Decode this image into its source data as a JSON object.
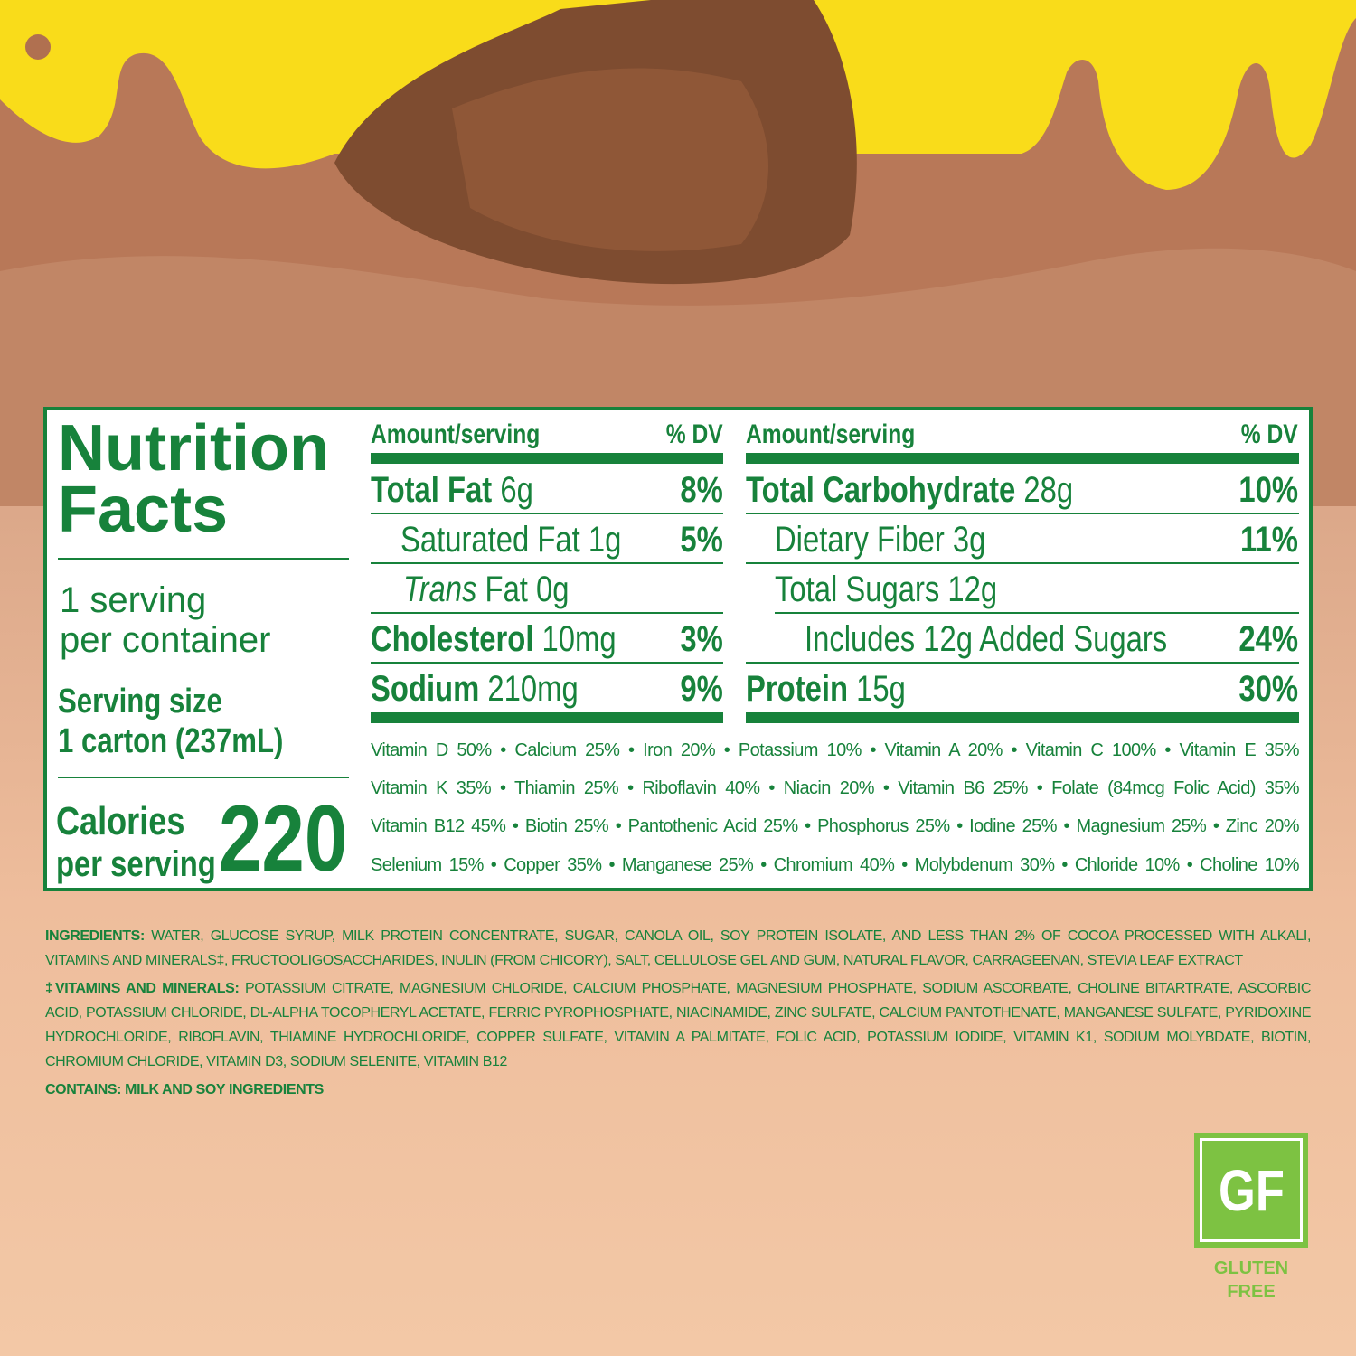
{
  "colors": {
    "green": "#17823b",
    "yellow": "#f9dc1a",
    "chocolate": "#b97a5a",
    "badge_green": "#7dc242"
  },
  "facts": {
    "title_line1": "Nutrition",
    "title_line2": "Facts",
    "servings_line1": "1 serving",
    "servings_line2": "per container",
    "serving_size_label": "Serving size",
    "serving_size_value": "1 carton (237mL)",
    "calories_label_line1": "Calories",
    "calories_label_line2": "per serving",
    "calories": "220"
  },
  "left_table": {
    "header_amount": "Amount/serving",
    "header_dv": "% DV",
    "rows": [
      {
        "name": "Total Fat",
        "amount": "6g",
        "dv": "8%"
      },
      {
        "name": "Saturated Fat",
        "amount": "1g",
        "dv": "5%"
      },
      {
        "name": "Trans",
        "name2": "Fat 0g",
        "amount": "",
        "dv": ""
      },
      {
        "name": "Cholesterol",
        "amount": "10mg",
        "dv": "3%"
      },
      {
        "name": "Sodium",
        "amount": "210mg",
        "dv": "9%"
      }
    ]
  },
  "right_table": {
    "header_amount": "Amount/serving",
    "header_dv": "% DV",
    "rows": [
      {
        "name": "Total Carbohydrate",
        "amount": "28g",
        "dv": "10%"
      },
      {
        "name": "Dietary Fiber 3g",
        "amount": "",
        "dv": "11%"
      },
      {
        "name": "Total Sugars 12g",
        "amount": "",
        "dv": ""
      },
      {
        "name": "Includes 12g Added Sugars",
        "amount": "",
        "dv": "24%"
      },
      {
        "name": "Protein",
        "amount": "15g",
        "dv": "30%"
      }
    ]
  },
  "vitamins": [
    "Vitamin D 50% • Calcium 25% • Iron 20% • Potassium 10% • Vitamin A 20% • Vitamin C 100% • Vitamin E 35%",
    "Vitamin K 35% • Thiamin 25% • Riboflavin 40% • Niacin 20% • Vitamin B6 25% • Folate (84mcg Folic Acid) 35%",
    "Vitamin B12 45% • Biotin 25% • Pantothenic Acid 25% • Phosphorus 25% • Iodine 25% • Magnesium 25% • Zinc 20%",
    "Selenium 15% • Copper 35% • Manganese 25% • Chromium 40% • Molybdenum 30% • Chloride 10% • Choline 10%"
  ],
  "ingredients": {
    "label": "INGREDIENTS:",
    "line1": " WATER, GLUCOSE SYRUP, MILK PROTEIN CONCENTRATE, SUGAR, CANOLA OIL, SOY PROTEIN ISOLATE, AND LESS THAN 2% OF COCOA PROCESSED WITH ALKALI,",
    "line2": "VITAMINS AND MINERALS‡, FRUCTOOLIGOSACCHARIDES, INULIN (FROM CHICORY), SALT, CELLULOSE GEL AND GUM, NATURAL FLAVOR, CARRAGEENAN, STEVIA LEAF EXTRACT",
    "vm_label": "‡VITAMINS AND MINERALS:",
    "vm_line1": " POTASSIUM CITRATE, MAGNESIUM CHLORIDE, CALCIUM PHOSPHATE, MAGNESIUM PHOSPHATE, SODIUM ASCORBATE, CHOLINE BITARTRATE,",
    "vm_line2": "ASCORBIC ACID, POTASSIUM CHLORIDE, DL-ALPHA TOCOPHERYL ACETATE, FERRIC PYROPHOSPHATE, NIACINAMIDE, ZINC SULFATE, CALCIUM PANTOTHENATE, MANGANESE",
    "vm_line3": "SULFATE, PYRIDOXINE HYDROCHLORIDE, RIBOFLAVIN, THIAMINE HYDROCHLORIDE, COPPER SULFATE, VITAMIN A PALMITATE, FOLIC ACID, POTASSIUM IODIDE, VITAMIN K1,",
    "vm_line4": "SODIUM MOLYBDATE, BIOTIN, CHROMIUM CHLORIDE, VITAMIN D3, SODIUM SELENITE, VITAMIN B12",
    "contains": "CONTAINS: MILK AND SOY INGREDIENTS"
  },
  "badge": {
    "mark": "GF",
    "line1": "GLUTEN",
    "line2": "FREE"
  }
}
